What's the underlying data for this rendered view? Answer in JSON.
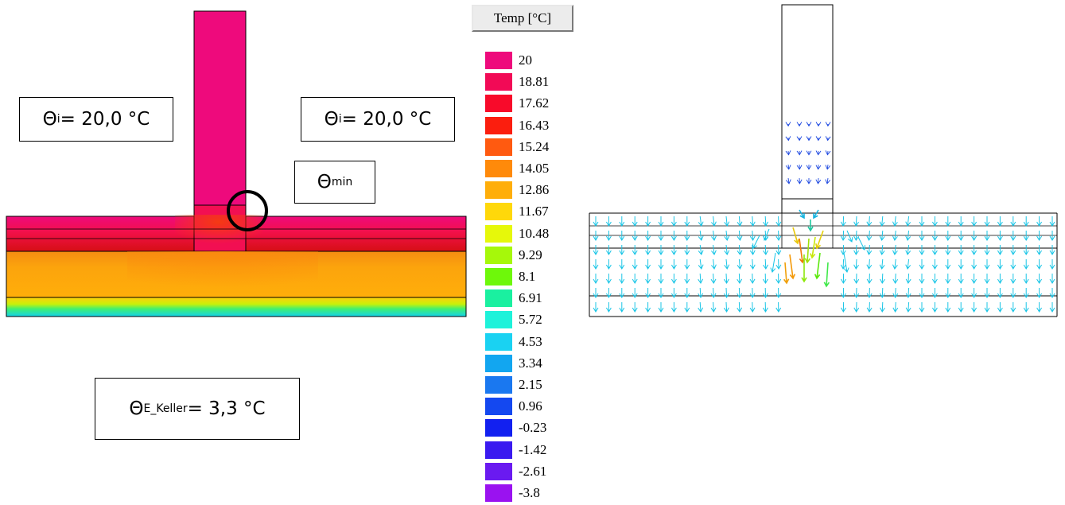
{
  "left_labels": {
    "theta_i_left": {
      "symbol": "Θ",
      "sub": "i",
      "rest": " = 20,0 °C"
    },
    "theta_i_right": {
      "symbol": "Θ",
      "sub": "i",
      "rest": " = 20,0 °C"
    },
    "theta_min": {
      "symbol": "Θ",
      "sub": "min",
      "rest": ""
    },
    "theta_e_keller": {
      "symbol": "Θ",
      "sub": "E_Keller",
      "rest": " = 3,3 °C"
    }
  },
  "legend": {
    "title": "Temp [°C]",
    "entries": [
      {
        "label": "20",
        "color": "#ee0a7c"
      },
      {
        "label": "18.81",
        "color": "#f20a56"
      },
      {
        "label": "17.62",
        "color": "#f80a2a"
      },
      {
        "label": "16.43",
        "color": "#fb1e0e"
      },
      {
        "label": "15.24",
        "color": "#ff5a10"
      },
      {
        "label": "14.05",
        "color": "#ff8a0a"
      },
      {
        "label": "12.86",
        "color": "#ffae0a"
      },
      {
        "label": "11.67",
        "color": "#ffd80a"
      },
      {
        "label": "10.48",
        "color": "#e6f80a"
      },
      {
        "label": "9.29",
        "color": "#a6f80a"
      },
      {
        "label": "8.1",
        "color": "#6ef80a"
      },
      {
        "label": "6.91",
        "color": "#1af0a0"
      },
      {
        "label": "5.72",
        "color": "#1ef2da"
      },
      {
        "label": "4.53",
        "color": "#1ad2f2"
      },
      {
        "label": "3.34",
        "color": "#12a6f0"
      },
      {
        "label": "2.15",
        "color": "#1a78f0"
      },
      {
        "label": "0.96",
        "color": "#1448f0"
      },
      {
        "label": "-0.23",
        "color": "#1220f0"
      },
      {
        "label": "-1.42",
        "color": "#3a1af0"
      },
      {
        "label": "-2.61",
        "color": "#6a1af0"
      },
      {
        "label": "-3.8",
        "color": "#9a12f0"
      }
    ]
  },
  "colors": {
    "wall": "#ee0a7c",
    "slab_top": "#f0115c",
    "slab_mid": "#e81a1a",
    "insulation": "#ffa508",
    "bottom_green": "#a0f010",
    "bottom_cyan": "#1ad0e8",
    "arrow_cyan": "#19c5e6",
    "arrow_blue": "#1d48e0"
  }
}
